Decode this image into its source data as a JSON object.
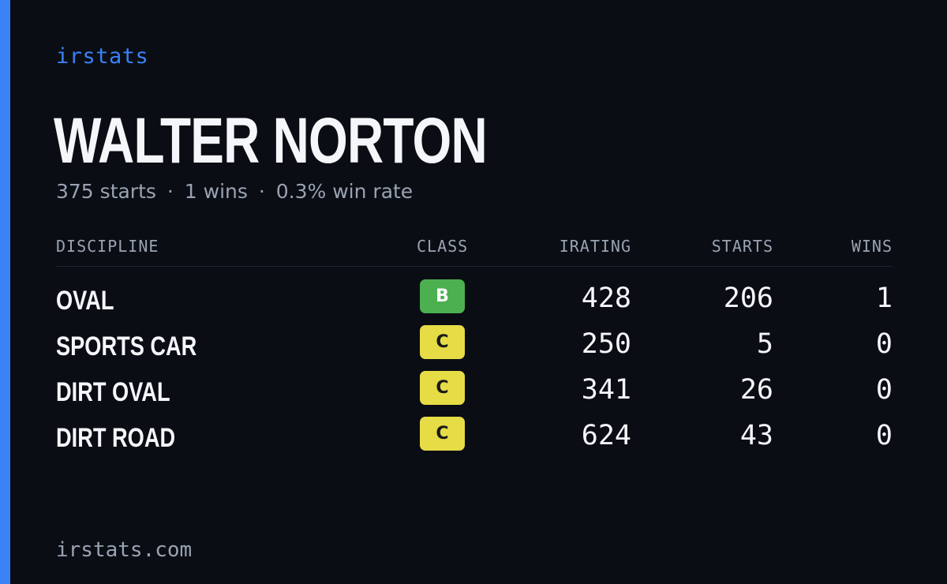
{
  "brand": "irstats",
  "player": {
    "name": "WALTER NORTON",
    "starts": "375 starts",
    "wins": "1 wins",
    "win_rate": "0.3% win rate",
    "separator": "·"
  },
  "table": {
    "headers": {
      "discipline": "DISCIPLINE",
      "class": "CLASS",
      "irating": "IRATING",
      "starts": "STARTS",
      "wins": "WINS"
    },
    "rows": [
      {
        "discipline": "OVAL",
        "class": "B",
        "irating": "428",
        "starts": "206",
        "wins": "1"
      },
      {
        "discipline": "SPORTS CAR",
        "class": "C",
        "irating": "250",
        "starts": "5",
        "wins": "0"
      },
      {
        "discipline": "DIRT OVAL",
        "class": "C",
        "irating": "341",
        "starts": "26",
        "wins": "0"
      },
      {
        "discipline": "DIRT ROAD",
        "class": "C",
        "irating": "624",
        "starts": "43",
        "wins": "0"
      }
    ]
  },
  "class_colors": {
    "B": {
      "bg": "#4caf50",
      "fg": "#ffffff"
    },
    "C": {
      "bg": "#e6dc45",
      "fg": "#1a1a1a"
    }
  },
  "colors": {
    "accent": "#3b82f6",
    "background": "#0a0d14",
    "text": "#f4f6f9",
    "muted": "#9aa3b2"
  },
  "footer": {
    "url": "irstats.com"
  }
}
